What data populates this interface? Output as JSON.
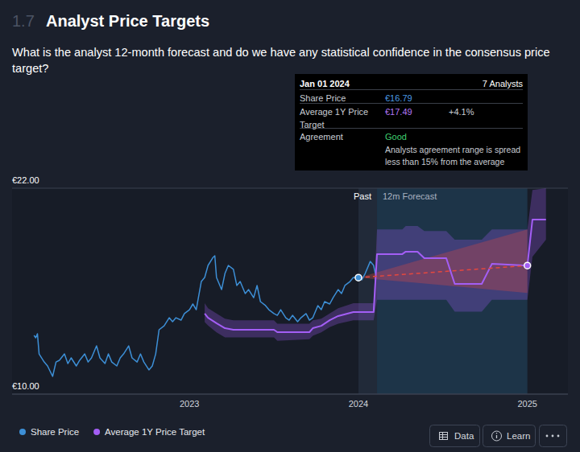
{
  "header": {
    "section": "1.7",
    "title": "Analyst Price Targets",
    "question": "What is the analyst 12-month forecast and do we have any statistical confidence in the consensus price target?"
  },
  "buttons": [
    "Data",
    "Learn"
  ],
  "chart_data": {
    "type": "line",
    "xlim": [
      2021.95,
      2025.24
    ],
    "xticks": [
      2023,
      2024,
      2025
    ],
    "ylim": [
      10,
      22
    ],
    "yticks": [
      {
        "value": 10,
        "label": "€10.00"
      },
      {
        "value": 22,
        "label": "€22.00"
      }
    ],
    "grid": true,
    "legend": "bottom-left",
    "series": [
      {
        "name": "Share Price",
        "color": "#3d8fd6",
        "type": "line",
        "x": [
          2022.08,
          2022.09,
          2022.1,
          2022.11,
          2022.14,
          2022.16,
          2022.19,
          2022.21,
          2022.23,
          2022.26,
          2022.28,
          2022.3,
          2022.33,
          2022.35,
          2022.38,
          2022.4,
          2022.42,
          2022.45,
          2022.47,
          2022.5,
          2022.52,
          2022.54,
          2022.57,
          2022.59,
          2022.61,
          2022.64,
          2022.66,
          2022.69,
          2022.71,
          2022.73,
          2022.76,
          2022.78,
          2022.8,
          2022.82,
          2022.85,
          2022.88,
          2022.9,
          2022.92,
          2022.95,
          2022.97,
          2023.0,
          2023.02,
          2023.04,
          2023.07,
          2023.09,
          2023.11,
          2023.14,
          2023.15,
          2023.16,
          2023.19,
          2023.21,
          2023.23,
          2023.26,
          2023.28,
          2023.3,
          2023.33,
          2023.35,
          2023.38,
          2023.4,
          2023.42,
          2023.45,
          2023.47,
          2023.5,
          2023.52,
          2023.54,
          2023.57,
          2023.59,
          2023.61,
          2023.64,
          2023.66,
          2023.69,
          2023.71,
          2023.73,
          2023.76,
          2023.78,
          2023.8,
          2023.83,
          2023.85,
          2023.88,
          2023.9,
          2023.92,
          2023.95,
          2023.97,
          2024.0,
          2024.02,
          2024.04,
          2024.07,
          2024.09,
          2024.1
        ],
        "values": [
          13.42,
          13.28,
          13.52,
          12.34,
          11.87,
          11.64,
          11.03,
          11.87,
          11.97,
          12.34,
          11.78,
          12.11,
          11.64,
          11.97,
          12.34,
          11.87,
          12.11,
          12.81,
          12.11,
          11.78,
          12.34,
          11.87,
          11.64,
          12.11,
          12.34,
          12.81,
          12.11,
          11.87,
          12.34,
          11.87,
          11.41,
          11.64,
          12.34,
          13.75,
          13.98,
          14.45,
          14.22,
          14.45,
          14.31,
          14.69,
          14.92,
          15.25,
          14.92,
          16.56,
          16.8,
          17.5,
          17.97,
          18.06,
          16.8,
          16.09,
          17.03,
          17.5,
          17.27,
          16.33,
          16.56,
          15.86,
          16.09,
          15.62,
          16.33,
          15.39,
          15.16,
          14.92,
          14.69,
          14.59,
          14.92,
          14.45,
          14.31,
          14.59,
          14.22,
          14.45,
          14.69,
          14.31,
          14.45,
          15.16,
          14.92,
          15.39,
          15.25,
          15.62,
          16.09,
          15.86,
          16.33,
          16.56,
          16.8,
          16.79,
          16.66,
          17.03,
          17.73,
          17.5,
          17.03
        ]
      },
      {
        "name": "Average 1Y Price Target",
        "color": "#a35ef5",
        "type": "line",
        "x": [
          2023.09,
          2023.11,
          2023.16,
          2023.21,
          2023.26,
          2023.5,
          2023.52,
          2023.71,
          2023.73,
          2023.78,
          2023.83,
          2023.88,
          2023.97,
          2024.09,
          2024.11,
          2024.26,
          2024.28,
          2024.35,
          2024.39,
          2024.52,
          2024.57,
          2024.73,
          2024.79,
          2025.0,
          2025.03,
          2025.11
        ],
        "values": [
          14.69,
          14.45,
          14.13,
          13.84,
          13.75,
          13.75,
          13.61,
          13.61,
          13.84,
          13.98,
          14.31,
          14.55,
          14.78,
          14.78,
          18.16,
          18.16,
          18.3,
          18.3,
          17.92,
          17.92,
          16.42,
          16.42,
          17.59,
          17.49,
          20.17,
          20.17
        ],
        "band_low": [
          14.2,
          14.0,
          13.6,
          13.3,
          13.3,
          13.3,
          13.1,
          13.2,
          13.4,
          13.6,
          13.9,
          14.1,
          14.3,
          14.3,
          15.5,
          15.5,
          15.5,
          15.5,
          15.5,
          15.5,
          14.8,
          14.8,
          15.5,
          15.5,
          18.0,
          19.0
        ],
        "band_high": [
          15.3,
          15.0,
          14.7,
          14.4,
          14.3,
          14.3,
          14.1,
          14.1,
          14.3,
          14.4,
          14.7,
          15.0,
          15.3,
          15.3,
          19.6,
          19.6,
          19.8,
          19.8,
          19.5,
          19.5,
          19.0,
          19.0,
          19.6,
          19.6,
          21.9,
          22.0
        ]
      }
    ],
    "forecast_line": {
      "x": [
        2024.0,
        2025.0
      ],
      "values": [
        16.79,
        17.49
      ],
      "color": "#e5483f",
      "line_style": "dashed"
    },
    "forecast_cone": {
      "x": [
        2024.0,
        2025.0
      ],
      "low": [
        16.79,
        15.9
      ],
      "high": [
        16.79,
        19.6
      ],
      "color": "#e5483f"
    },
    "regions": [
      {
        "label": "Past",
        "x": [
          2024.0,
          2024.11
        ],
        "color": "#212a39"
      },
      {
        "label": "12m Forecast",
        "x": [
          2024.11,
          2025.0
        ],
        "color": "#1d3448"
      }
    ],
    "tooltip": {
      "date": "Jan 01 2024",
      "count": "7 Analysts",
      "rows": [
        {
          "label": "Share Price",
          "value": "€16.79"
        },
        {
          "label": "Average 1Y Price Target",
          "value": "€17.49",
          "change": "+4.1%"
        },
        {
          "label": "Agreement",
          "value": "Good",
          "note": "Analysts agreement range is spread less than 15% from the average"
        }
      ]
    }
  }
}
